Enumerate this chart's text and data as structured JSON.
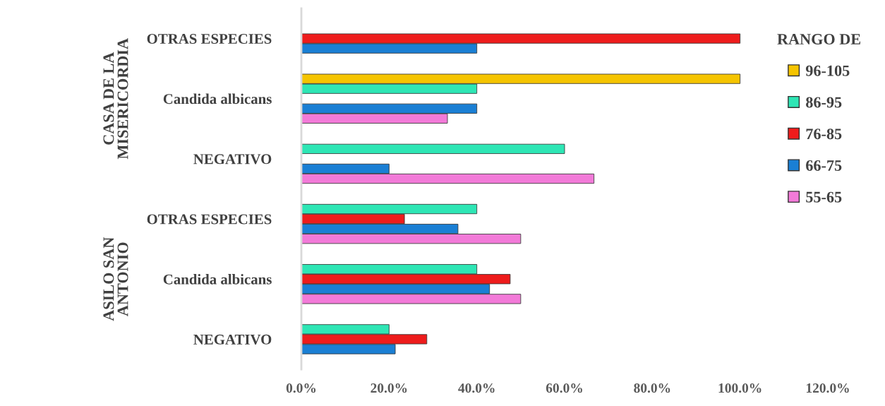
{
  "chart_data": {
    "type": "bar",
    "orientation": "horizontal",
    "categories": [
      "OTRAS ESPECIES",
      "Candida albicans",
      "NEGATIVO",
      "OTRAS ESPECIES",
      "Candida albicans",
      "NEGATIVO"
    ],
    "series": [
      {
        "name": "96-105",
        "color": "#f5c400",
        "values": [
          null,
          100,
          null,
          null,
          null,
          null
        ]
      },
      {
        "name": "86-95",
        "color": "#2ee6b5",
        "values": [
          null,
          40,
          60,
          40,
          40,
          20
        ]
      },
      {
        "name": "76-85",
        "color": "#ee1c1c",
        "values": [
          100,
          null,
          null,
          23.5,
          47.6,
          28.6
        ]
      },
      {
        "name": "66-75",
        "color": "#1a7fd4",
        "values": [
          40,
          40,
          20,
          35.7,
          42.9,
          21.4
        ]
      },
      {
        "name": "55-65",
        "color": "#f27ad8",
        "values": [
          null,
          33.3,
          66.7,
          50,
          50,
          null
        ]
      }
    ],
    "legend_title": "RANGO DE",
    "legend": "right",
    "grid": false,
    "xlim": [
      0,
      120
    ],
    "xticks": [
      {
        "value": 0,
        "label": "0.0%"
      },
      {
        "value": 20,
        "label": "20.0%"
      },
      {
        "value": 40,
        "label": "40.0%"
      },
      {
        "value": 60,
        "label": "60.0%"
      },
      {
        "value": 80,
        "label": "80.0%"
      },
      {
        "value": 100,
        "label": "100.0%"
      },
      {
        "value": 120,
        "label": "120.0%"
      }
    ],
    "annotations": [
      "CASA DE LA\nMISERICORDIA",
      "ASILO SAN\nANTONIO"
    ]
  }
}
